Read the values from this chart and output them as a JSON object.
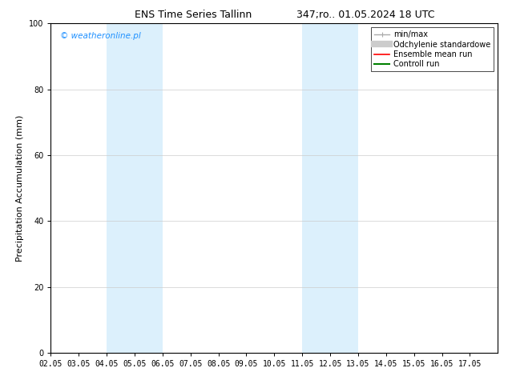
{
  "title_left": "ENS Time Series Tallinn",
  "title_right": "347;ro.. 01.05.2024 18 UTC",
  "ylabel": "Precipitation Accumulation (mm)",
  "watermark": "© weatheronline.pl",
  "watermark_color": "#1E90FF",
  "ylim": [
    0,
    100
  ],
  "xtick_labels": [
    "02.05",
    "03.05",
    "04.05",
    "05.05",
    "06.05",
    "07.05",
    "08.05",
    "09.05",
    "10.05",
    "11.05",
    "12.05",
    "13.05",
    "14.05",
    "15.05",
    "16.05",
    "17.05"
  ],
  "ytick_labels": [
    0,
    20,
    40,
    60,
    80,
    100
  ],
  "shaded_regions": [
    {
      "xstart": 2,
      "xend": 4,
      "color": "#DCF0FC"
    },
    {
      "xstart": 9,
      "xend": 11,
      "color": "#DCF0FC"
    }
  ],
  "legend_items": [
    {
      "label": "min/max",
      "color": "#AAAAAA",
      "lw": 1.0,
      "linestyle": "-",
      "type": "minmax"
    },
    {
      "label": "Odchylenie standardowe",
      "color": "#CCCCCC",
      "lw": 6,
      "linestyle": "-",
      "type": "band"
    },
    {
      "label": "Ensemble mean run",
      "color": "#FF0000",
      "lw": 1.2,
      "linestyle": "-",
      "type": "line"
    },
    {
      "label": "Controll run",
      "color": "#008000",
      "lw": 1.5,
      "linestyle": "-",
      "type": "line"
    }
  ],
  "bg_color": "#FFFFFF",
  "plot_bg_color": "#FFFFFF",
  "grid_color": "#CCCCCC",
  "tick_fontsize": 7,
  "label_fontsize": 8,
  "title_fontsize": 9,
  "legend_fontsize": 7
}
